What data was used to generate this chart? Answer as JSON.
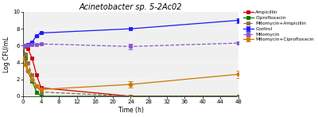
{
  "title": "Acinetobacter sp. 5-2Ac02",
  "xlabel": "Time (h)",
  "ylabel": "Log CFU/mL",
  "xlim": [
    0,
    48
  ],
  "ylim": [
    0,
    10
  ],
  "yticks": [
    0,
    2,
    4,
    6,
    8,
    10
  ],
  "xticks": [
    0,
    4,
    8,
    12,
    16,
    20,
    24,
    28,
    32,
    36,
    40,
    44,
    48
  ],
  "series": [
    {
      "label": "Control",
      "color": "#1a1aff",
      "x": [
        0,
        0.5,
        1,
        2,
        3,
        4,
        24,
        48
      ],
      "y": [
        6.0,
        6.05,
        6.1,
        6.4,
        7.2,
        7.5,
        8.0,
        9.0
      ],
      "yerr": [
        null,
        null,
        null,
        null,
        null,
        null,
        null,
        0.28
      ],
      "marker": "s",
      "linestyle": "-",
      "markersize": 3
    },
    {
      "label": "Ampicillin",
      "color": "#cc0000",
      "x": [
        0,
        0.5,
        1,
        2,
        3,
        4,
        24,
        48
      ],
      "y": [
        6.0,
        5.9,
        5.7,
        4.5,
        2.5,
        1.0,
        0.0,
        0.0
      ],
      "yerr": [
        null,
        null,
        null,
        null,
        null,
        null,
        null,
        null
      ],
      "marker": "s",
      "linestyle": "-",
      "markersize": 3
    },
    {
      "label": "Ciprofloxacin",
      "color": "#007700",
      "x": [
        0,
        0.5,
        1,
        2,
        3,
        4,
        24,
        48
      ],
      "y": [
        6.0,
        4.5,
        3.0,
        1.8,
        0.5,
        0.0,
        0.0,
        0.0
      ],
      "yerr": [
        null,
        null,
        null,
        null,
        null,
        null,
        null,
        null
      ],
      "marker": "s",
      "linestyle": "-",
      "markersize": 3
    },
    {
      "label": "Mitomycin",
      "color": "#8855cc",
      "x": [
        0,
        0.5,
        1,
        2,
        3,
        4,
        24,
        48
      ],
      "y": [
        6.0,
        6.05,
        6.05,
        6.1,
        6.15,
        6.2,
        5.9,
        6.3
      ],
      "yerr": [
        null,
        null,
        null,
        null,
        null,
        null,
        0.35,
        0.2
      ],
      "marker": "s",
      "linestyle": "--",
      "markersize": 3
    },
    {
      "label": "Mitomycin+Ampicillin",
      "color": "#996644",
      "x": [
        0,
        0.5,
        1,
        2,
        3,
        4,
        24,
        48
      ],
      "y": [
        5.8,
        5.0,
        4.0,
        2.5,
        1.2,
        0.5,
        0.0,
        0.0
      ],
      "yerr": [
        null,
        null,
        null,
        null,
        null,
        null,
        null,
        null
      ],
      "marker": "s",
      "linestyle": "--",
      "markersize": 3
    },
    {
      "label": "Mitomycin+Ciprofloxacin",
      "color": "#cc7700",
      "x": [
        0,
        0.5,
        1,
        2,
        3,
        4,
        24,
        48
      ],
      "y": [
        4.5,
        3.8,
        3.0,
        2.0,
        1.2,
        0.8,
        1.4,
        2.6
      ],
      "yerr": [
        null,
        null,
        null,
        null,
        null,
        null,
        0.35,
        0.45
      ],
      "marker": "o",
      "linestyle": "-",
      "markersize": 3.5
    }
  ],
  "figure_facecolor": "#ffffff",
  "axes_facecolor": "#f0f0f0"
}
